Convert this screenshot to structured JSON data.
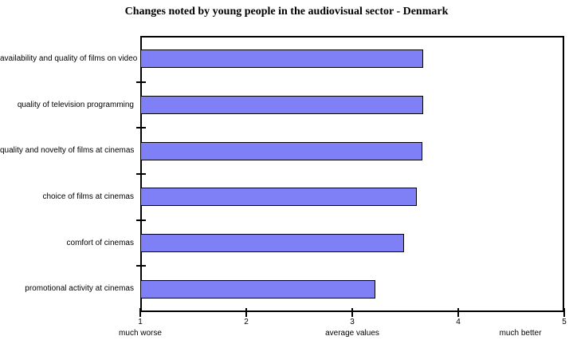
{
  "chart_data": {
    "type": "bar",
    "orientation": "horizontal",
    "title": "Changes noted by young people in the audiovisual sector - Denmark",
    "categories": [
      "availability and quality of films on video",
      "quality of television programming",
      "quality and novelty of films at cinemas",
      "choice of films at cinemas",
      "comfort of cinemas",
      "promotional activity at cinemas"
    ],
    "values": [
      3.67,
      3.67,
      3.66,
      3.61,
      3.49,
      3.22
    ],
    "xlim": [
      1,
      5
    ],
    "x_ticks": [
      1,
      2,
      3,
      4,
      5
    ],
    "x_axis_annotations": [
      {
        "label": "much worse",
        "anchor": 1
      },
      {
        "label": "average values",
        "anchor": 3
      },
      {
        "label": "much better",
        "anchor": 5
      }
    ],
    "legend": "none",
    "grid": "off",
    "bar_color": "#8080F6",
    "bar_border_color": "#000000",
    "background": "#FFFFFF"
  }
}
